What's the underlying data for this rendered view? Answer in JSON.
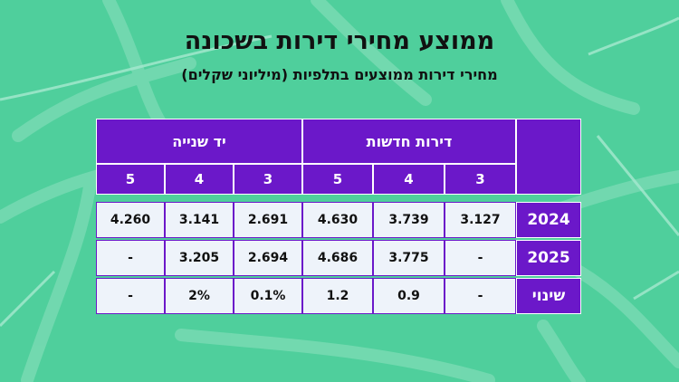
{
  "title": "ממוצע מחירי דירות בשכונה",
  "subtitle": "מחירי דירות ממוצעים בתלפיות (מיליוני שקלים)",
  "colors": {
    "background": "#4fcf9c",
    "header": "#6b18c9",
    "cell": "#eef3fa"
  },
  "chart_data": {
    "type": "table",
    "title": "ממוצע מחירי דירות בשכונה",
    "subtitle": "מחירי דירות ממוצעים בתלפיות (מיליוני שקלים)",
    "groups": [
      {
        "name": "דירות חדשות",
        "rooms": [
          "3",
          "4",
          "5"
        ]
      },
      {
        "name": "יד שנייה",
        "rooms": [
          "3",
          "4",
          "5"
        ]
      }
    ],
    "rows": [
      {
        "label": "2024",
        "new": [
          "3.127",
          "3.739",
          "4.630"
        ],
        "used": [
          "2.691",
          "3.141",
          "4.260"
        ]
      },
      {
        "label": "2025",
        "new": [
          "-",
          "3.775",
          "4.686"
        ],
        "used": [
          "2.694",
          "3.205",
          "-"
        ]
      },
      {
        "label": "שינוי",
        "new": [
          "-",
          "0.9",
          "1.2"
        ],
        "used": [
          "0.1%",
          "2%",
          "-"
        ]
      }
    ]
  }
}
